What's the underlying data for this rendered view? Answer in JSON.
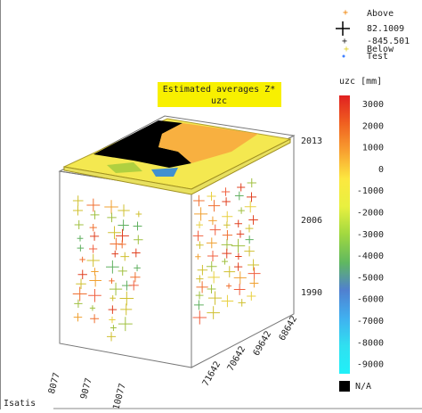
{
  "legend": {
    "items": [
      "Above",
      "82.1009",
      "-845.501",
      "Below",
      "Test"
    ]
  },
  "title_box": {
    "lines": [
      "Estimated averages Z*",
      "uzc"
    ]
  },
  "colorbar": {
    "title": "uzc [mm]",
    "labels": [
      "3000",
      "2000",
      "1000",
      "0",
      "-1000",
      "-2000",
      "-3000",
      "-4000",
      "-5000",
      "-6000",
      "-7000",
      "-8000",
      "-9000"
    ],
    "na": "N/A"
  },
  "axes": {
    "x": [
      "8077",
      "9077",
      "10077"
    ],
    "y": [
      "71642",
      "70642",
      "69642",
      "68642"
    ],
    "z": [
      "2013",
      "2006",
      "1990"
    ]
  },
  "footer": "Isatis"
}
